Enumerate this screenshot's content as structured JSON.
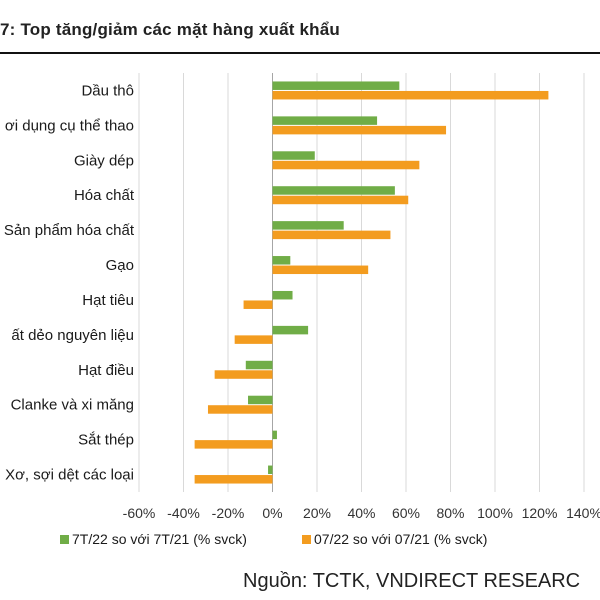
{
  "header": {
    "title": "7: Top tăng/giảm các mặt hàng xuất khẩu"
  },
  "chart_data": {
    "type": "bar",
    "orientation": "horizontal",
    "categories": [
      "Dầu thô",
      "ơi dụng cụ thể thao",
      "Giày dép",
      "Hóa chất",
      "Sản phẩm hóa chất",
      "Gạo",
      "Hạt tiêu",
      "ất dẻo nguyên liệu",
      "Hạt điều",
      "Clanke và xi măng",
      "Sắt thép",
      "Xơ, sợi dệt các loại"
    ],
    "series": [
      {
        "name": "7T/22 so với 7T/21 (% svck)",
        "color": "#70ad47",
        "values": [
          57,
          47,
          19,
          55,
          32,
          8,
          9,
          16,
          -12,
          -11,
          2,
          -2
        ]
      },
      {
        "name": "07/22 so với 07/21 (% svck)",
        "color": "#f39c1f",
        "values": [
          124,
          78,
          66,
          61,
          53,
          43,
          -13,
          -17,
          -26,
          -29,
          -35,
          -35
        ]
      }
    ],
    "xlim": [
      -60,
      140
    ],
    "xticks": [
      -60,
      -40,
      -20,
      0,
      20,
      40,
      60,
      80,
      100,
      120,
      140
    ],
    "tick_format": "percent",
    "grid": true,
    "legend": "bottom"
  },
  "footer": {
    "source": "Nguồn: TCTK, VNDIRECT RESEARC"
  }
}
